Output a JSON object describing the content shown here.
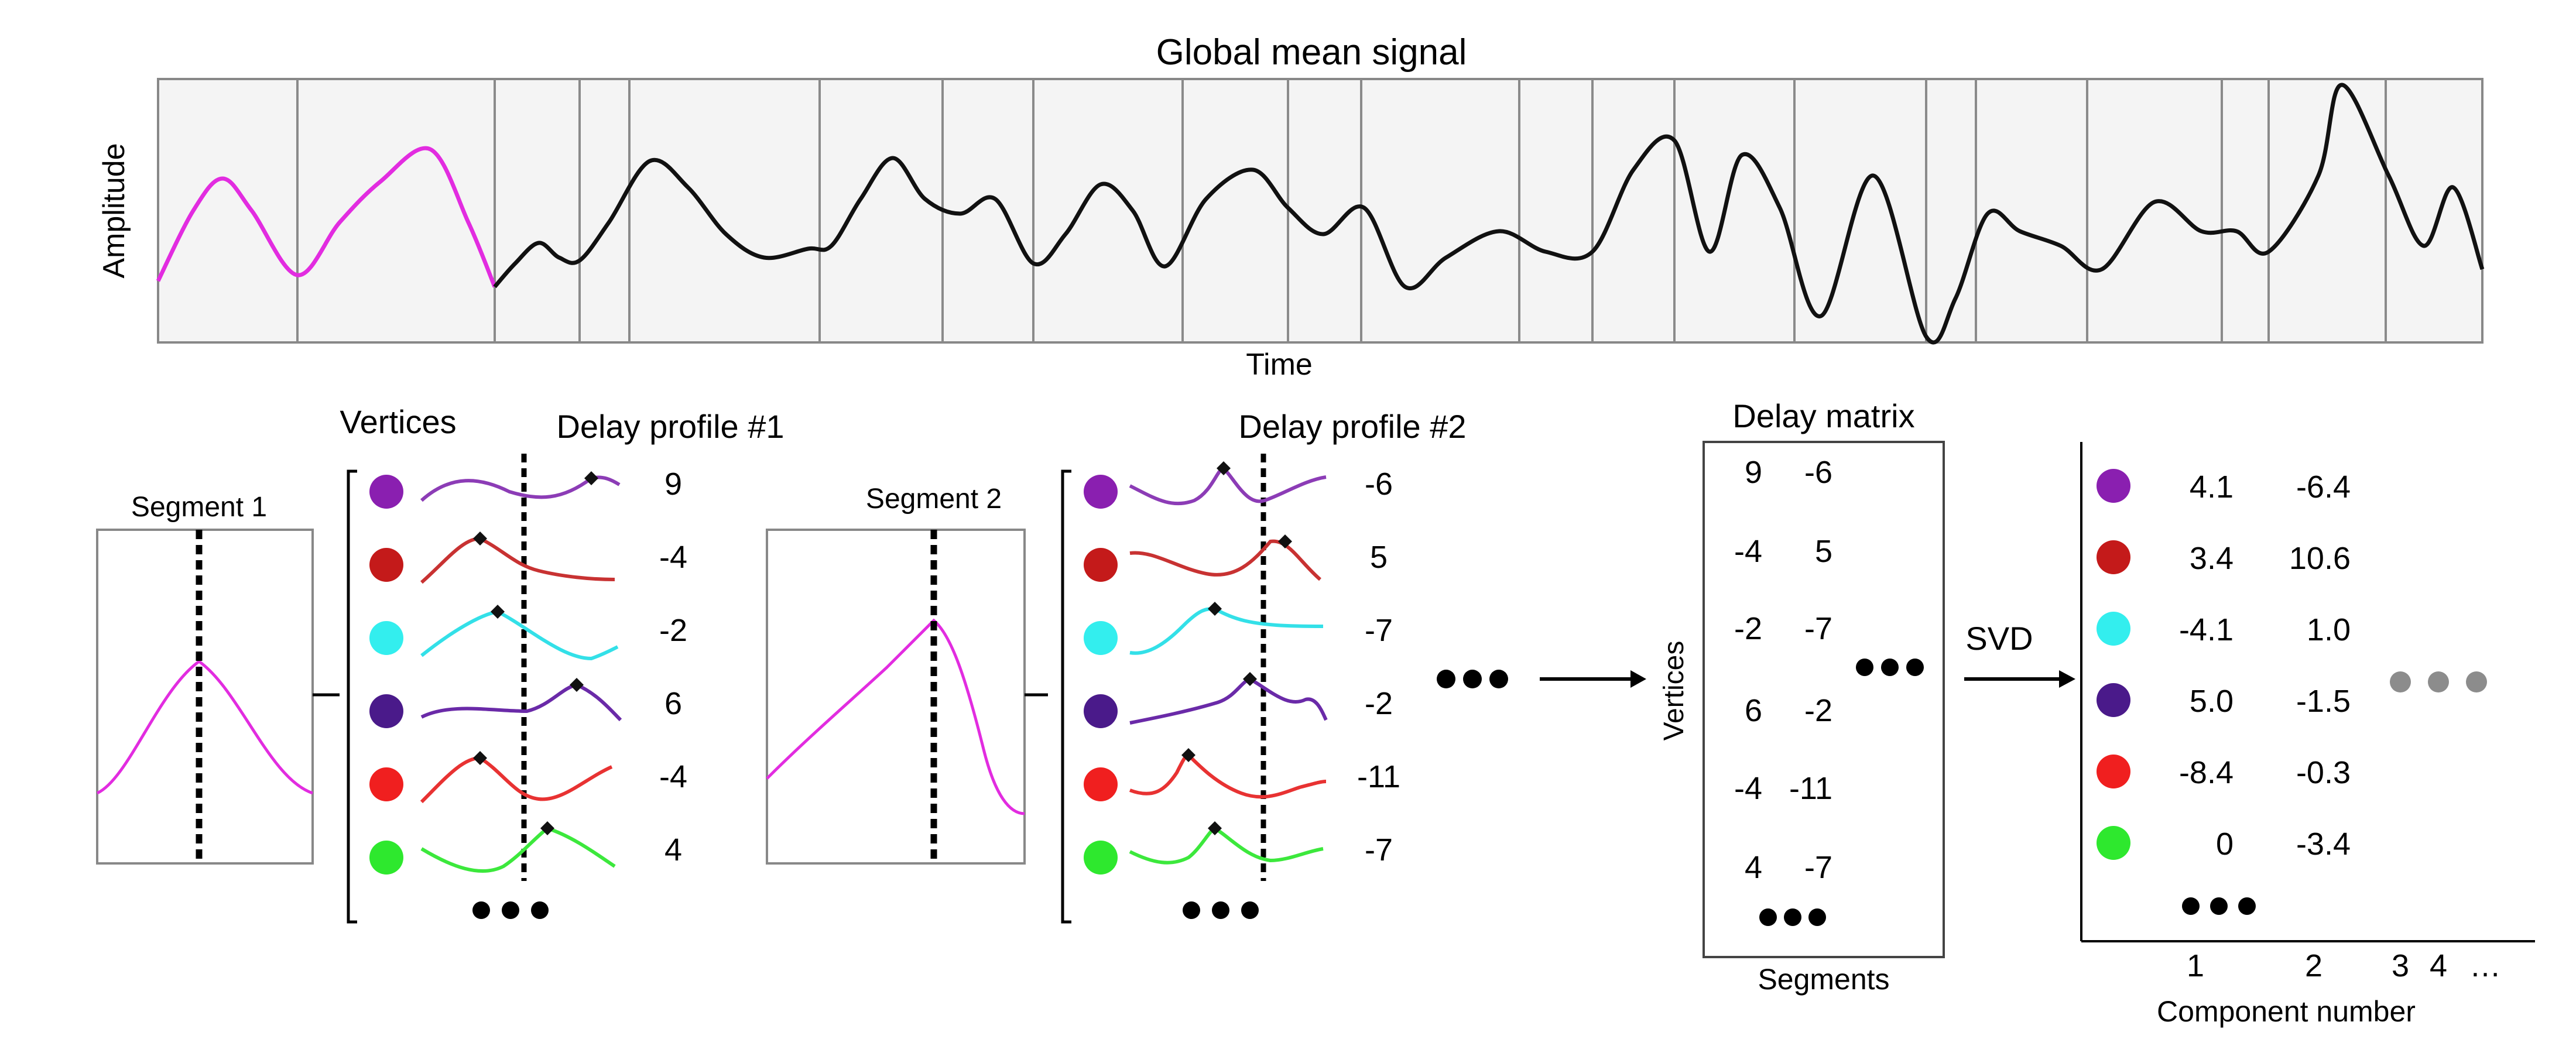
{
  "title": "Global mean signal",
  "xlabel": "Time",
  "ylabel": "Amplitude",
  "vertices_label": "Vertices",
  "segment1_label": "Segment 1",
  "segment2_label": "Segment 2",
  "profile1_label": "Delay profile #1",
  "profile2_label": "Delay profile #2",
  "matrix_title": "Delay matrix",
  "matrix_ylabel": "Vertices",
  "matrix_xlabel": "Segments",
  "svd_label": "SVD",
  "component_xlabel": "Component number",
  "component_ticks": [
    "1",
    "2",
    "3",
    "4",
    "…"
  ],
  "colors": {
    "segment": "#e22ce0",
    "vertex": [
      "#8a1fb0",
      "#c41a1a",
      "#33eeee",
      "#4a1a8a",
      "#f01f1f",
      "#2ee82e"
    ],
    "curve": [
      "#8c3cb6",
      "#c83232",
      "#33e0e8",
      "#6a2aa8",
      "#e83232",
      "#3ce83c"
    ],
    "dots_grey": "#8c8c8c"
  },
  "delay1": [
    "9",
    "-4",
    "-2",
    "6",
    "-4",
    "4"
  ],
  "delay2": [
    "-6",
    "5",
    "-7",
    "-2",
    "-11",
    "-7"
  ],
  "matrix_rows": [
    [
      "9",
      "-6"
    ],
    [
      "-4",
      "5"
    ],
    [
      "-2",
      "-7"
    ],
    [
      "6",
      "-2"
    ],
    [
      "-4",
      "-11"
    ],
    [
      "4",
      "-7"
    ]
  ],
  "svd_rows": [
    [
      "4.1",
      "-6.4"
    ],
    [
      "3.4",
      "10.6"
    ],
    [
      "-4.1",
      "1.0"
    ],
    [
      "5.0",
      "-1.5"
    ],
    [
      "-8.4",
      "-0.3"
    ],
    [
      "0",
      "-3.4"
    ]
  ]
}
